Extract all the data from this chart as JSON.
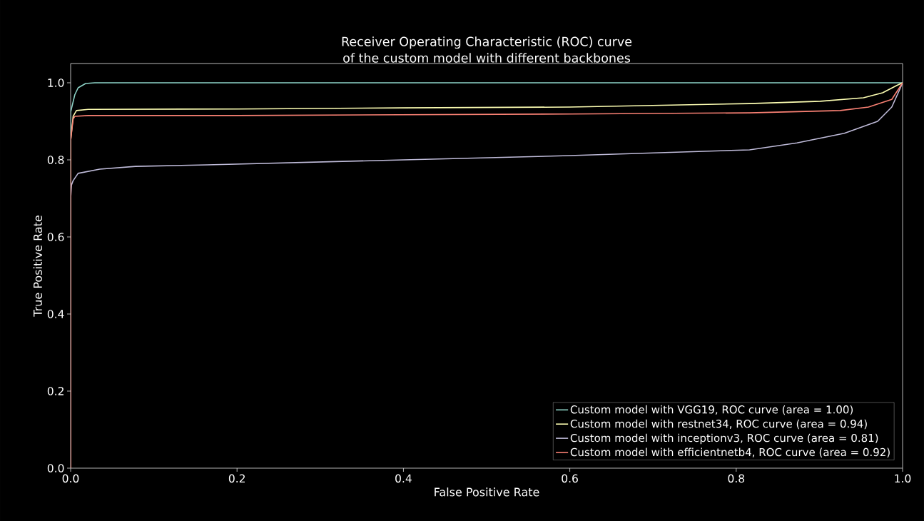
{
  "chart_data": {
    "type": "line",
    "title": "Receiver Operating Characteristic (ROC) curve\nof the custom model with different backbones",
    "xlabel": "False Positive Rate",
    "ylabel": "True Positive Rate",
    "xlim": [
      0,
      1
    ],
    "ylim": [
      0,
      1.05
    ],
    "xticks": [
      {
        "value": 0,
        "label": "0.0"
      },
      {
        "value": 0.2,
        "label": "0.2"
      },
      {
        "value": 0.4,
        "label": "0.4"
      },
      {
        "value": 0.6,
        "label": "0.6"
      },
      {
        "value": 0.8,
        "label": "0.8"
      },
      {
        "value": 1,
        "label": "1.0"
      }
    ],
    "yticks": [
      {
        "value": 0,
        "label": "0.0"
      },
      {
        "value": 0.2,
        "label": "0.2"
      },
      {
        "value": 0.4,
        "label": "0.4"
      },
      {
        "value": 0.6,
        "label": "0.6"
      },
      {
        "value": 0.8,
        "label": "0.8"
      },
      {
        "value": 1,
        "label": "1.0"
      }
    ],
    "legend": "bottom right",
    "series": [
      {
        "name": "Custom model with VGG19, ROC curve (area = 1.00)",
        "color": "#8dd3c7",
        "x": [
          0,
          0,
          0.005,
          0.009,
          0.018,
          0.029,
          0.2,
          0.5,
          0.8,
          1
        ],
        "values": [
          0,
          0.924,
          0.969,
          0.987,
          0.998,
          1.0,
          1.0,
          1.0,
          1.0,
          1.0
        ]
      },
      {
        "name": "Custom model with restnet34, ROC curve (area = 0.94)",
        "color": "#feffb3",
        "x": [
          0,
          0,
          0.003,
          0.007,
          0.021,
          0.2,
          0.4,
          0.6,
          0.816,
          0.901,
          0.953,
          0.976,
          0.993,
          1
        ],
        "values": [
          0,
          0.85,
          0.913,
          0.928,
          0.931,
          0.932,
          0.935,
          0.937,
          0.946,
          0.952,
          0.961,
          0.974,
          0.993,
          1.0
        ]
      },
      {
        "name": "Custom model with inceptionv3, ROC curve (area = 0.81)",
        "color": "#bfbbd9",
        "x": [
          0,
          0,
          0.001,
          0.003,
          0.009,
          0.035,
          0.078,
          0.164,
          0.4,
          0.6,
          0.816,
          0.873,
          0.93,
          0.97,
          0.987,
          0.996,
          1
        ],
        "values": [
          0,
          0.7,
          0.735,
          0.746,
          0.765,
          0.776,
          0.783,
          0.787,
          0.8,
          0.811,
          0.826,
          0.844,
          0.869,
          0.9,
          0.937,
          0.98,
          1.0
        ]
      },
      {
        "name": "Custom model with efficientnetb4, ROC curve (area = 0.92)",
        "color": "#fa8174",
        "x": [
          0,
          0,
          0.003,
          0.005,
          0.021,
          0.2,
          0.6,
          0.816,
          0.925,
          0.959,
          0.987,
          1
        ],
        "values": [
          0,
          0.85,
          0.906,
          0.913,
          0.915,
          0.915,
          0.919,
          0.922,
          0.928,
          0.937,
          0.957,
          1.0
        ]
      }
    ]
  }
}
